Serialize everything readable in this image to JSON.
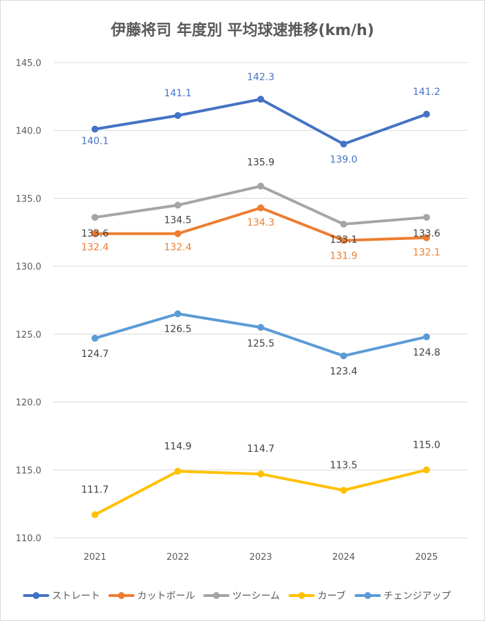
{
  "chart_data": {
    "type": "line",
    "title": "伊藤将司 年度別 平均球速推移(km/h)",
    "xlabel": "",
    "ylabel": "",
    "categories": [
      "2021",
      "2022",
      "2023",
      "2024",
      "2025"
    ],
    "ylim": [
      110,
      145
    ],
    "yticks": [
      "110.0",
      "115.0",
      "120.0",
      "125.0",
      "130.0",
      "135.0",
      "140.0",
      "145.0"
    ],
    "grid": true,
    "legend_position": "bottom",
    "series": [
      {
        "name": "ストレート",
        "color": "#4472c4",
        "label_color": "#4472c4",
        "values": [
          140.1,
          141.1,
          142.3,
          139.0,
          141.2
        ],
        "labels": [
          "140.1",
          "141.1",
          "142.3",
          "139.0",
          "141.2"
        ]
      },
      {
        "name": "カットボール",
        "color": "#ed7d31",
        "label_color": "#ed7d31",
        "values": [
          132.4,
          132.4,
          134.3,
          131.9,
          132.1
        ],
        "labels": [
          "132.4",
          "132.4",
          "134.3",
          "131.9",
          "132.1"
        ]
      },
      {
        "name": "ツーシーム",
        "color": "#a5a5a5",
        "label_color": "#404040",
        "values": [
          133.6,
          134.5,
          135.9,
          133.1,
          133.6
        ],
        "labels": [
          "133.6",
          "134.5",
          "135.9",
          "133.1",
          "133.6"
        ]
      },
      {
        "name": "カーブ",
        "color": "#ffc000",
        "label_color": "#404040",
        "values": [
          111.7,
          114.9,
          114.7,
          113.5,
          115.0
        ],
        "labels": [
          "111.7",
          "114.9",
          "114.7",
          "113.5",
          "115.0"
        ]
      },
      {
        "name": "チェンジアップ",
        "color": "#5b9bd5",
        "label_color": "#404040",
        "values": [
          124.7,
          126.5,
          125.5,
          123.4,
          124.8
        ],
        "labels": [
          "124.7",
          "126.5",
          "125.5",
          "123.4",
          "124.8"
        ]
      }
    ]
  }
}
